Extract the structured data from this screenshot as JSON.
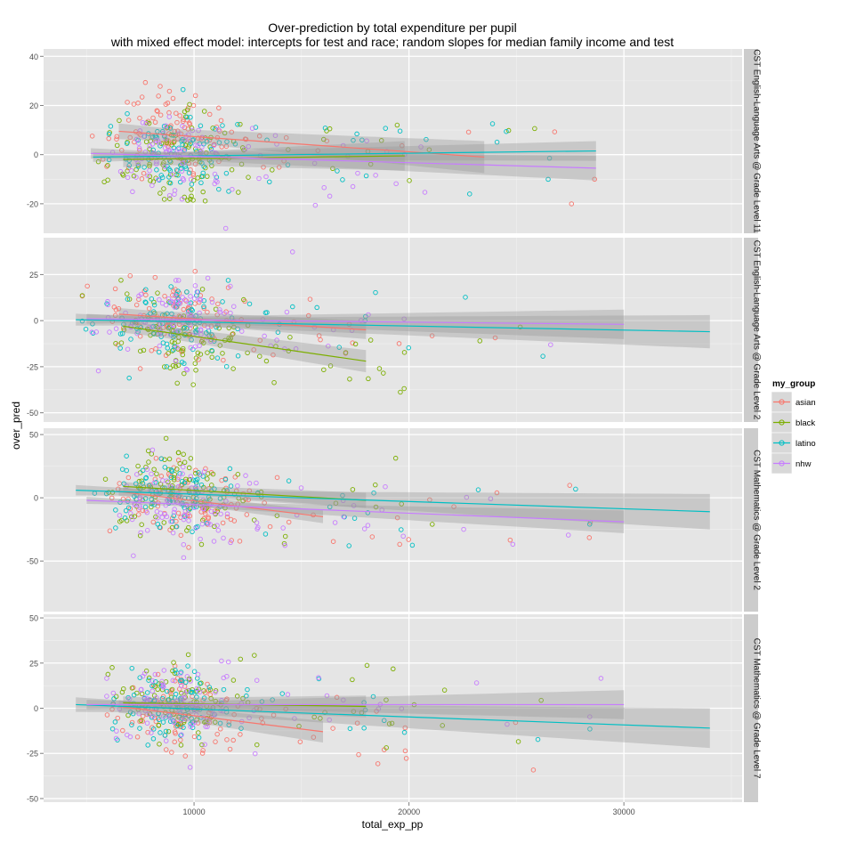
{
  "chart_data": {
    "type": "scatter",
    "title_line1": "Over-prediction by total expenditure per pupil",
    "title_line2": "with mixed effect model: intercepts for test and race; random slopes for median family income and test",
    "xlabel": "total_exp_pp",
    "ylabel": "over_pred",
    "xlim": [
      3000,
      35500
    ],
    "x_ticks": [
      10000,
      20000,
      30000
    ],
    "x_tick_labels": [
      "10000",
      "20000",
      "30000"
    ],
    "grid": true,
    "legend": {
      "title": "my_group",
      "position": "right",
      "entries": [
        "asian",
        "black",
        "latino",
        "nhw"
      ]
    },
    "colors": {
      "asian": "#F8766D",
      "black": "#7CAE00",
      "latino": "#00BFC4",
      "nhw": "#C77CFF",
      "panel_bg": "#E5E5E5",
      "strip_bg": "#CCCCCC",
      "ribbon": "#999999"
    },
    "facets": [
      {
        "label": "CST English-Language Arts @ Grade Level 11",
        "ylim": [
          -32,
          43
        ],
        "y_ticks": [
          -20,
          0,
          20,
          40
        ],
        "y_tick_labels": [
          "-20",
          "0",
          "20",
          "40"
        ],
        "trend": [
          {
            "group": "asian",
            "x": [
              6500,
              23500
            ],
            "y": [
              9.5,
              -1.0
            ],
            "se": [
              2.5,
              6.5
            ]
          },
          {
            "group": "black",
            "x": [
              6700,
              19800
            ],
            "y": [
              -2.0,
              -0.5
            ],
            "se": [
              2.5,
              6.0
            ]
          },
          {
            "group": "latino",
            "x": [
              5300,
              28700
            ],
            "y": [
              -1.0,
              1.5
            ],
            "se": [
              1.5,
              4.0
            ]
          },
          {
            "group": "nhw",
            "x": [
              5200,
              28700
            ],
            "y": [
              0.5,
              -5.5
            ],
            "se": [
              1.5,
              5.0
            ]
          }
        ]
      },
      {
        "label": "CST English-Language Arts @ Grade Level 2",
        "ylim": [
          -55,
          45
        ],
        "y_ticks": [
          -50,
          -25,
          0,
          25
        ],
        "y_tick_labels": [
          "-50",
          "-25",
          "0",
          "25"
        ],
        "trend": [
          {
            "group": "asian",
            "x": [
              6500,
              18000
            ],
            "y": [
              3.5,
              -5.0
            ],
            "se": [
              3.0,
              5.0
            ]
          },
          {
            "group": "black",
            "x": [
              6700,
              18000
            ],
            "y": [
              -3.0,
              -22.0
            ],
            "se": [
              3.0,
              6.0
            ]
          },
          {
            "group": "latino",
            "x": [
              4500,
              34000
            ],
            "y": [
              0.5,
              -6.0
            ],
            "se": [
              2.0,
              9.0
            ]
          },
          {
            "group": "nhw",
            "x": [
              5000,
              30000
            ],
            "y": [
              1.0,
              -2.0
            ],
            "se": [
              1.5,
              8.0
            ]
          }
        ]
      },
      {
        "label": "CST Mathematics @ Grade Level 2",
        "ylim": [
          -90,
          55
        ],
        "y_ticks": [
          -50,
          0,
          50
        ],
        "y_tick_labels": [
          "-50",
          "0",
          "50"
        ],
        "trend": [
          {
            "group": "asian",
            "x": [
              6500,
              16000
            ],
            "y": [
              5.0,
              -15.0
            ],
            "se": [
              3.0,
              5.0
            ]
          },
          {
            "group": "black",
            "x": [
              6700,
              18000
            ],
            "y": [
              9.0,
              -2.0
            ],
            "se": [
              3.0,
              6.0
            ]
          },
          {
            "group": "latino",
            "x": [
              4500,
              34000
            ],
            "y": [
              6.0,
              -11.0
            ],
            "se": [
              2.0,
              14.0
            ]
          },
          {
            "group": "nhw",
            "x": [
              5000,
              30000
            ],
            "y": [
              -2.0,
              -19.0
            ],
            "se": [
              1.5,
              9.0
            ]
          }
        ]
      },
      {
        "label": "CST Mathematics @ Grade Level 7",
        "ylim": [
          -52,
          52
        ],
        "y_ticks": [
          -50,
          -25,
          0,
          25,
          50
        ],
        "y_tick_labels": [
          "-50",
          "-25",
          "0",
          "25",
          "50"
        ],
        "trend": [
          {
            "group": "asian",
            "x": [
              6500,
              16000
            ],
            "y": [
              1.0,
              -13.0
            ],
            "se": [
              3.0,
              6.0
            ]
          },
          {
            "group": "black",
            "x": [
              6700,
              18000
            ],
            "y": [
              3.0,
              1.0
            ],
            "se": [
              3.0,
              6.0
            ]
          },
          {
            "group": "latino",
            "x": [
              4500,
              34000
            ],
            "y": [
              2.0,
              -11.0
            ],
            "se": [
              2.5,
              11.0
            ]
          },
          {
            "group": "nhw",
            "x": [
              5000,
              30000
            ],
            "y": [
              2.0,
              2.0
            ],
            "se": [
              1.5,
              8.0
            ]
          }
        ]
      }
    ]
  }
}
